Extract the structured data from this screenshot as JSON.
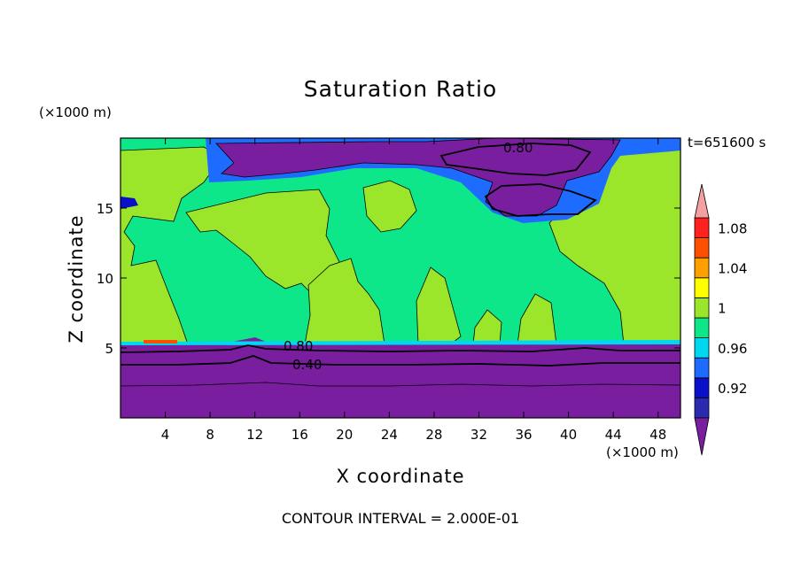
{
  "chart_data": {
    "type": "contour",
    "title": "Saturation Ratio",
    "xlabel": "X coordinate",
    "ylabel": "Z coordinate",
    "x_unit": "(×1000 m)",
    "y_unit": "(×1000 m)",
    "time_label": "t=651600 s",
    "footer": "CONTOUR INTERVAL = 2.000E-01",
    "xlim": [
      0,
      50
    ],
    "ylim": [
      0,
      20
    ],
    "x_ticks": [
      4,
      8,
      12,
      16,
      20,
      24,
      28,
      32,
      36,
      40,
      44,
      48
    ],
    "y_ticks": [
      5,
      10,
      15
    ],
    "contour_labels": [
      {
        "text": "0.80",
        "x": 35.5,
        "z": 19.0
      },
      {
        "text": "0.80",
        "x": 16.3,
        "z": 5.1
      },
      {
        "text": "0.40",
        "x": 17.2,
        "z": 3.9
      }
    ],
    "colorbar": {
      "labels": [
        "1.08",
        "1.04",
        "1",
        "0.96",
        "0.92"
      ],
      "levels": [
        0.9,
        0.92,
        0.94,
        0.96,
        0.98,
        1.0,
        1.02,
        1.04,
        1.06,
        1.08
      ],
      "colors": [
        "#7a1ea0",
        "#2b2bb0",
        "#0a10c8",
        "#1e6cff",
        "#00d8f0",
        "#0ee68a",
        "#9be62a",
        "#ffff00",
        "#ffa000",
        "#ff5000",
        "#ff2020",
        "#f4a0a0"
      ]
    },
    "regions": {
      "lower_subsaturated_top_z": 5.2,
      "upper_dry_band_z": [
        18.0,
        20.0
      ]
    }
  }
}
